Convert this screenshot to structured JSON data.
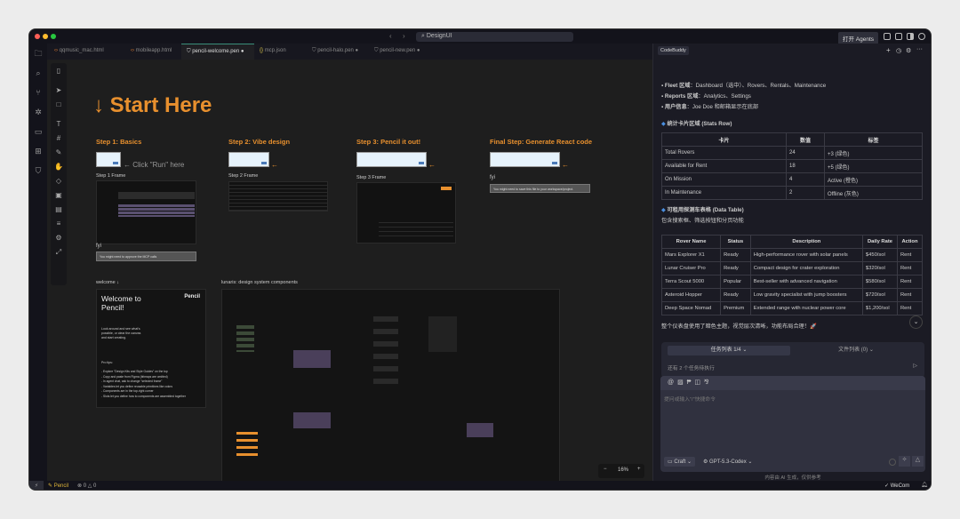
{
  "titlebar": {
    "search": "DesignUI",
    "open_agents": "打开 Agents"
  },
  "tabs": [
    {
      "label": "qqmusic_mac.html",
      "icon": "html-icon"
    },
    {
      "label": "mobileapp.html",
      "icon": "html-icon"
    },
    {
      "label": "pencil-welcome.pen",
      "icon": "pen-icon",
      "active": true
    },
    {
      "label": "mcp.json",
      "icon": "json-icon"
    },
    {
      "label": "pencil-halo.pen",
      "icon": "pen-icon"
    },
    {
      "label": "pencil-new.pen",
      "icon": "pen-icon"
    }
  ],
  "canvas": {
    "title": "↓ Start Here",
    "steps": [
      {
        "title": "Step 1: Basics",
        "frame": "Step 1 Frame",
        "hint": "← Click \"Run\" here"
      },
      {
        "title": "Step 2: Vibe design",
        "frame": "Step 2 Frame"
      },
      {
        "title": "Step 3: Pencil it out!",
        "frame": "Step 3 Frame"
      },
      {
        "title": "Final Step: Generate React code"
      }
    ],
    "fyi_label": "fyi",
    "fyi1": "You might need to approve the MCP calls",
    "fyi2": "You might need to save this file to your workspace/project.",
    "welcome_label": "welcome ↓",
    "components_label": "lunaris: design system components",
    "welcome": {
      "title": "Welcome to Pencil!",
      "brand": "Pencil",
      "intro": "Look around and see what's possible, or clear the canvas and start creating.",
      "tips_title": "Pro tips:",
      "tips": [
        "- Explore \"Design Kits and Style Guides\" on the top",
        "- Copy and paste from Figma (bitmaps are omitted)",
        "- In agent chat, ask to change \"selected frame\"",
        "- Variables let you define reusable primitives like colors",
        "- Components are in the top-right corner",
        "- Slots let you define how to components are assembled together"
      ]
    },
    "zoom": "16%"
  },
  "panel": {
    "tab": "CodeBuddy",
    "bullets": [
      {
        "b": "Fleet 区域",
        "t": "：Dashboard（选中）、Rovers、Rentals、Maintenance"
      },
      {
        "b": "Reports 区域",
        "t": "：Analytics、Settings"
      },
      {
        "b": "用户信息",
        "t": "：Joe Doe 和邮箱显示在底部"
      }
    ],
    "stats_heading": "统计卡片区域 (Stats Row)",
    "stats_headers": [
      "卡片",
      "数值",
      "标签"
    ],
    "stats_rows": [
      [
        "Total Rovers",
        "24",
        "+3 (绿色)"
      ],
      [
        "Available for Rent",
        "18",
        "+5 (绿色)"
      ],
      [
        "On Mission",
        "4",
        "Active (橙色)"
      ],
      [
        "In Maintenance",
        "2",
        "Offline (灰色)"
      ]
    ],
    "table_heading": "可租用探测车表格 (Data Table)",
    "table_desc": "包含搜索框、筛选按钮和分页功能",
    "rover_headers": [
      "Rover Name",
      "Status",
      "Description",
      "Daily Rate",
      "Action"
    ],
    "rover_rows": [
      [
        "Mars Explorer X1",
        "Ready",
        "High-performance rover with solar panels",
        "$450/sol",
        "Rent"
      ],
      [
        "Lunar Cruiser Pro",
        "Ready",
        "Compact design for crater exploration",
        "$320/sol",
        "Rent"
      ],
      [
        "Terra Scout 5000",
        "Popular",
        "Best-seller with advanced navigation",
        "$580/sol",
        "Rent"
      ],
      [
        "Asteroid Hopper",
        "Ready",
        "Low gravity specialist with jump boosters",
        "$720/sol",
        "Rent"
      ],
      [
        "Deep Space Nomad",
        "Premium",
        "Extended range with nuclear power core",
        "$1,200/sol",
        "Rent"
      ]
    ],
    "summary": "整个仪表盘使用了暗色主题，视觉层次清晰，功能布局合理！🚀",
    "task_tab": "任务列表 1/4",
    "file_tab": "文件列表 (0)",
    "pending": "还有 2 个任务待执行",
    "placeholder": "提问或输入\"/\"快捷命令",
    "mode": "Craft",
    "model": "GPT-5.3-Codex",
    "disclaimer": "内容由 AI 生成，仅供参考"
  },
  "statusbar": {
    "pencil": "Pencil",
    "errors": "0",
    "warnings": "0",
    "wecom": "WeCom"
  },
  "colors": {
    "accent": "#e8902e",
    "canvas": "#1e1e1e",
    "panel": "#1b1b24"
  }
}
